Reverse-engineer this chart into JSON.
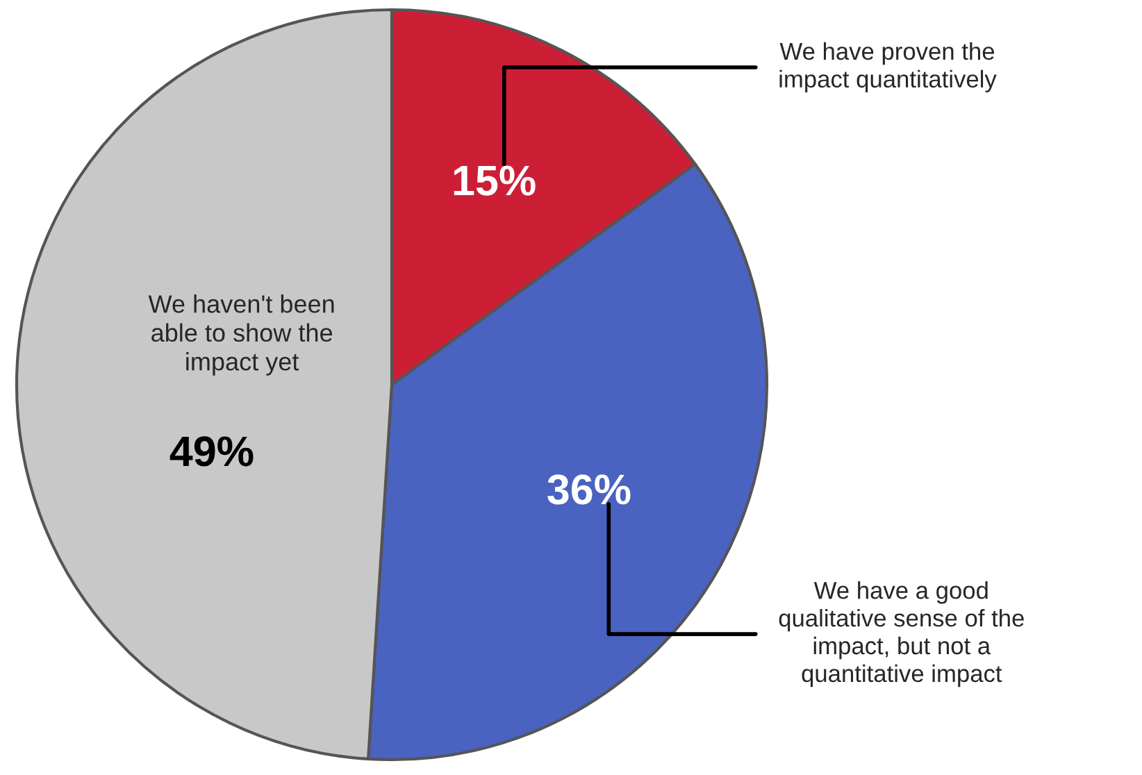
{
  "chart_data": {
    "type": "pie",
    "categories": [
      "We have proven the\nimpact quantitatively",
      "We have a good\nqualitative sense of the\nimpact, but not a\nquantitative impact",
      "We haven't been\nable to show the\nimpact yet"
    ],
    "values": [
      15,
      36,
      49
    ],
    "colors": [
      "#cc1f36",
      "#4a63c0",
      "#c8c8c8"
    ],
    "value_labels": [
      "15%",
      "36%",
      "49%"
    ]
  }
}
